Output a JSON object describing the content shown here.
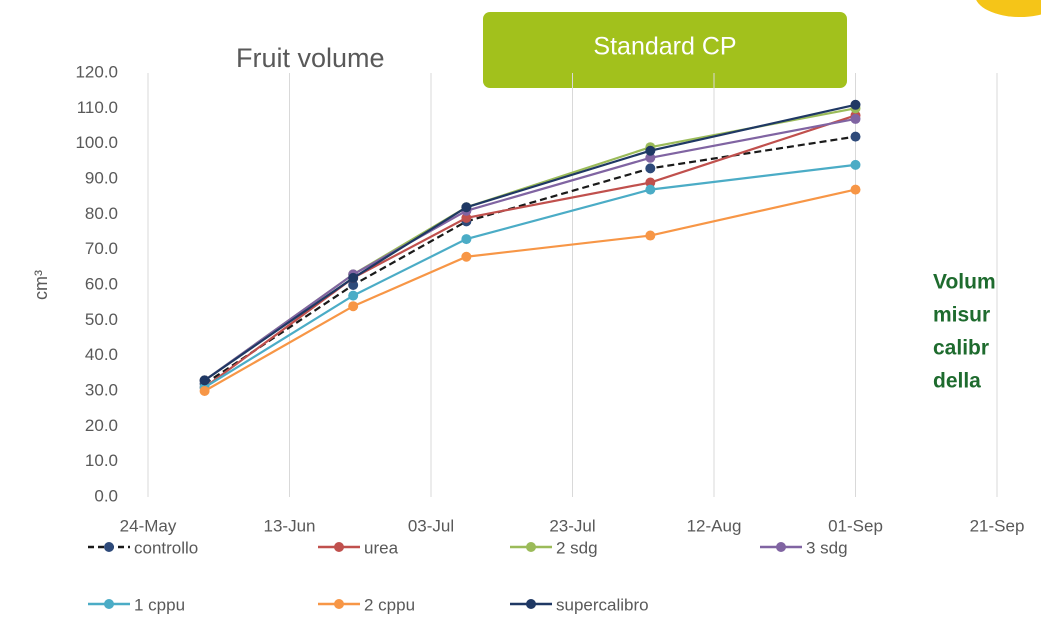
{
  "chart_data": {
    "type": "line",
    "title": "Fruit volume",
    "badge": "Standard CP",
    "ylabel": "cm³",
    "annotation": [
      "Volum",
      "misur",
      "calibr",
      "della"
    ],
    "x": [
      "01-Jun",
      "22-Jun",
      "08-Jul",
      "03-Aug",
      "01-Sep"
    ],
    "xlim": [
      "24-May",
      "21-Sep"
    ],
    "xticks": [
      "24-May",
      "13-Jun",
      "03-Jul",
      "23-Jul",
      "12-Aug",
      "01-Sep",
      "21-Sep"
    ],
    "ylim": [
      0,
      120
    ],
    "yticks": [
      {
        "value": 0,
        "label": "0.0"
      },
      {
        "value": 10,
        "label": "10.0"
      },
      {
        "value": 20,
        "label": "20.0"
      },
      {
        "value": 30,
        "label": "30.0"
      },
      {
        "value": 40,
        "label": "40.0"
      },
      {
        "value": 50,
        "label": "50.0"
      },
      {
        "value": 60,
        "label": "60.0"
      },
      {
        "value": 70,
        "label": "70.0"
      },
      {
        "value": 80,
        "label": "80.0"
      },
      {
        "value": 90,
        "label": "90.0"
      },
      {
        "value": 100,
        "label": "100.0"
      },
      {
        "value": 110,
        "label": "110.0"
      },
      {
        "value": 120,
        "label": "120.0"
      }
    ],
    "grid": "x",
    "series": [
      {
        "name": "controllo",
        "color": "#1a1a1a",
        "marker_color": "#2e4a7a",
        "dashed": true,
        "values": [
          32,
          60,
          78,
          93,
          102
        ]
      },
      {
        "name": "urea",
        "color": "#c0504d",
        "values": [
          31,
          62,
          79,
          89,
          108
        ]
      },
      {
        "name": "2 sdg",
        "color": "#9bbb59",
        "values": [
          33,
          63,
          82,
          99,
          110
        ]
      },
      {
        "name": "3 sdg",
        "color": "#8064a2",
        "values": [
          33,
          63,
          81,
          96,
          107
        ]
      },
      {
        "name": "1 cppu",
        "color": "#4bacc6",
        "values": [
          31,
          57,
          73,
          87,
          94
        ]
      },
      {
        "name": "2 cppu",
        "color": "#f79646",
        "values": [
          30,
          54,
          68,
          74,
          87
        ]
      },
      {
        "name": "supercalibro",
        "color": "#1f3864",
        "values": [
          33,
          62,
          82,
          98,
          111
        ]
      }
    ]
  }
}
